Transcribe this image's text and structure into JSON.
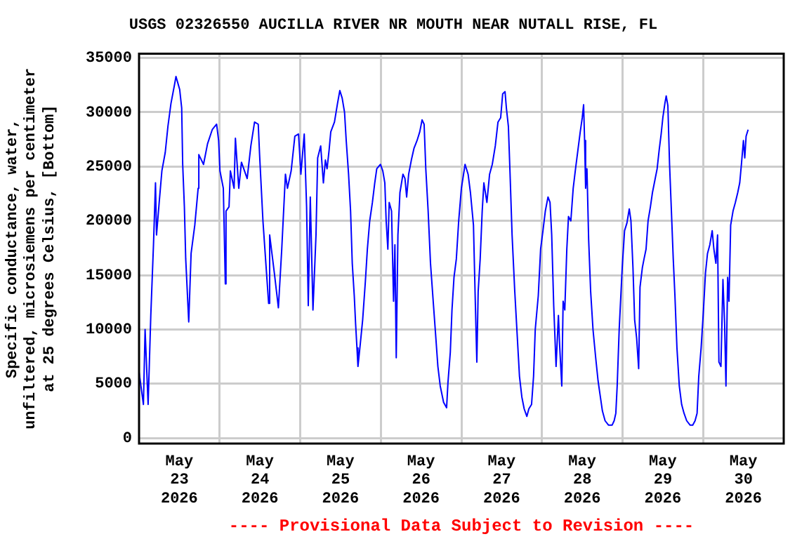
{
  "chart_data": {
    "type": "line",
    "title": "USGS 02326550 AUCILLA RIVER NR MOUTH NEAR NUTALL RISE, FL",
    "ylabel": "Specific conductance, water, unfiltered, microsiemens per centimeter at 25 degrees Celsius, [Bottom]",
    "annotations": [
      "---- Provisional Data Subject to Revision ----"
    ],
    "xlim": [
      "2026-05-23",
      "2026-05-31"
    ],
    "xticks": [
      {
        "value": "2026-05-23T12:00",
        "label": "May 23 2026"
      },
      {
        "value": "2026-05-24",
        "label": null
      },
      {
        "value": "2026-05-24T12:00",
        "label": "May 24 2026"
      },
      {
        "value": "2026-05-25",
        "label": null
      },
      {
        "value": "2026-05-25T12:00",
        "label": "May 25 2026"
      },
      {
        "value": "2026-05-26",
        "label": null
      },
      {
        "value": "2026-05-26T12:00",
        "label": "May 26 2026"
      },
      {
        "value": "2026-05-27",
        "label": null
      },
      {
        "value": "2026-05-27T12:00",
        "label": "May 27 2026"
      },
      {
        "value": "2026-05-28",
        "label": null
      },
      {
        "value": "2026-05-28T12:00",
        "label": "May 28 2026"
      },
      {
        "value": "2026-05-29",
        "label": null
      },
      {
        "value": "2026-05-29T12:00",
        "label": "May 29 2026"
      },
      {
        "value": "2026-05-30",
        "label": null
      },
      {
        "value": "2026-05-30T12:00",
        "label": "May 30 2026"
      }
    ],
    "ylim": [
      -500,
      35400
    ],
    "yticks": [
      0,
      5000,
      10000,
      15000,
      20000,
      25000,
      30000,
      35000
    ],
    "grid": true,
    "legend": false,
    "marker": "none",
    "line_style": "solid",
    "series": [
      {
        "color": "#0000ff",
        "x": [
          "2026-05-23T00:00",
          "2026-05-23T01:18",
          "2026-05-23T01:48",
          "2026-05-23T02:42",
          "2026-05-23T03:30",
          "2026-05-23T04:18",
          "2026-05-23T04:54",
          "2026-05-23T05:12",
          "2026-05-23T06:00",
          "2026-05-23T06:48",
          "2026-05-23T07:48",
          "2026-05-23T08:36",
          "2026-05-23T09:30",
          "2026-05-23T10:36",
          "2026-05-23T11:00",
          "2026-05-23T12:06",
          "2026-05-23T12:42",
          "2026-05-23T13:00",
          "2026-05-23T13:30",
          "2026-05-23T13:54",
          "2026-05-23T14:48",
          "2026-05-23T15:30",
          "2026-05-23T16:36",
          "2026-05-23T17:36",
          "2026-05-23T17:48",
          "2026-05-23T19:12",
          "2026-05-23T20:24",
          "2026-05-23T21:48",
          "2026-05-23T23:06",
          "2026-05-23T23:42",
          "2026-05-24T00:06",
          "2026-05-24T01:06",
          "2026-05-24T01:42",
          "2026-05-24T01:54",
          "2026-05-24T02:48",
          "2026-05-24T03:12",
          "2026-05-24T04:18",
          "2026-05-24T04:42",
          "2026-05-24T05:42",
          "2026-05-24T06:30",
          "2026-05-24T08:12",
          "2026-05-24T09:18",
          "2026-05-24T10:24",
          "2026-05-24T11:30",
          "2026-05-24T11:54",
          "2026-05-24T12:54",
          "2026-05-24T14:06",
          "2026-05-24T14:36",
          "2026-05-24T14:54",
          "2026-05-24T16:18",
          "2026-05-24T17:30",
          "2026-05-24T18:30",
          "2026-05-24T19:36",
          "2026-05-24T20:12",
          "2026-05-24T21:18",
          "2026-05-24T22:24",
          "2026-05-24T23:30",
          "2026-05-25T00:12",
          "2026-05-25T01:12",
          "2026-05-25T01:54",
          "2026-05-25T02:24",
          "2026-05-25T03:00",
          "2026-05-25T03:48",
          "2026-05-25T04:42",
          "2026-05-25T05:12",
          "2026-05-25T06:06",
          "2026-05-25T06:54",
          "2026-05-25T07:30",
          "2026-05-25T08:00",
          "2026-05-25T08:36",
          "2026-05-25T09:06",
          "2026-05-25T10:12",
          "2026-05-25T11:06",
          "2026-05-25T11:48",
          "2026-05-25T12:30",
          "2026-05-25T13:12",
          "2026-05-25T13:42",
          "2026-05-25T14:24",
          "2026-05-25T15:00",
          "2026-05-25T15:30",
          "2026-05-25T16:06",
          "2026-05-25T16:30",
          "2026-05-25T16:54",
          "2026-05-25T17:12",
          "2026-05-25T17:54",
          "2026-05-25T18:36",
          "2026-05-25T19:24",
          "2026-05-25T20:00",
          "2026-05-25T20:42",
          "2026-05-25T21:30",
          "2026-05-25T22:12",
          "2026-05-25T22:48",
          "2026-05-25T23:54",
          "2026-05-26T00:36",
          "2026-05-26T01:12",
          "2026-05-26T01:36",
          "2026-05-26T02:06",
          "2026-05-26T02:30",
          "2026-05-26T03:12",
          "2026-05-26T03:48",
          "2026-05-26T04:12",
          "2026-05-26T04:36",
          "2026-05-26T05:06",
          "2026-05-26T05:42",
          "2026-05-26T06:36",
          "2026-05-26T07:12",
          "2026-05-26T07:42",
          "2026-05-26T08:18",
          "2026-05-26T09:06",
          "2026-05-26T09:54",
          "2026-05-26T10:48",
          "2026-05-26T11:36",
          "2026-05-26T12:18",
          "2026-05-26T12:54",
          "2026-05-26T13:24",
          "2026-05-26T14:06",
          "2026-05-26T14:48",
          "2026-05-26T15:42",
          "2026-05-26T16:24",
          "2026-05-26T17:00",
          "2026-05-26T17:42",
          "2026-05-26T18:42",
          "2026-05-26T19:36",
          "2026-05-26T20:00",
          "2026-05-26T20:42",
          "2026-05-26T21:12",
          "2026-05-26T21:48",
          "2026-05-26T22:30",
          "2026-05-26T23:12",
          "2026-05-27T00:00",
          "2026-05-27T01:06",
          "2026-05-27T02:00",
          "2026-05-27T02:42",
          "2026-05-27T03:36",
          "2026-05-27T04:06",
          "2026-05-27T04:36",
          "2026-05-27T05:00",
          "2026-05-27T05:36",
          "2026-05-27T06:12",
          "2026-05-27T06:42",
          "2026-05-27T07:36",
          "2026-05-27T08:24",
          "2026-05-27T09:12",
          "2026-05-27T10:06",
          "2026-05-27T10:54",
          "2026-05-27T11:42",
          "2026-05-27T12:18",
          "2026-05-27T13:00",
          "2026-05-27T13:24",
          "2026-05-27T14:00",
          "2026-05-27T14:30",
          "2026-05-27T15:06",
          "2026-05-27T15:54",
          "2026-05-27T16:36",
          "2026-05-27T17:18",
          "2026-05-27T18:00",
          "2026-05-27T18:42",
          "2026-05-27T19:30",
          "2026-05-27T20:06",
          "2026-05-27T20:54",
          "2026-05-27T21:30",
          "2026-05-27T22:00",
          "2026-05-27T22:54",
          "2026-05-27T23:36",
          "2026-05-28T00:18",
          "2026-05-28T01:00",
          "2026-05-28T01:48",
          "2026-05-28T02:24",
          "2026-05-28T02:54",
          "2026-05-28T03:30",
          "2026-05-28T04:12",
          "2026-05-28T04:54",
          "2026-05-28T05:18",
          "2026-05-28T05:54",
          "2026-05-28T06:18",
          "2026-05-28T06:48",
          "2026-05-28T07:24",
          "2026-05-28T07:54",
          "2026-05-28T08:36",
          "2026-05-28T09:18",
          "2026-05-28T10:00",
          "2026-05-28T10:42",
          "2026-05-28T11:24",
          "2026-05-28T12:00",
          "2026-05-28T12:24",
          "2026-05-28T12:42",
          "2026-05-28T13:00",
          "2026-05-28T13:24",
          "2026-05-28T13:54",
          "2026-05-28T14:30",
          "2026-05-28T15:12",
          "2026-05-28T16:00",
          "2026-05-28T16:42",
          "2026-05-28T17:18",
          "2026-05-28T18:00",
          "2026-05-28T18:48",
          "2026-05-28T19:48",
          "2026-05-28T20:54",
          "2026-05-28T21:30",
          "2026-05-28T22:00",
          "2026-05-28T22:24",
          "2026-05-28T23:00",
          "2026-05-28T23:54",
          "2026-05-29T00:36",
          "2026-05-29T01:18",
          "2026-05-29T02:00",
          "2026-05-29T02:30",
          "2026-05-29T03:06",
          "2026-05-29T03:36",
          "2026-05-29T04:12",
          "2026-05-29T04:48",
          "2026-05-29T05:12",
          "2026-05-29T05:54",
          "2026-05-29T06:24",
          "2026-05-29T07:00",
          "2026-05-29T07:36",
          "2026-05-29T08:18",
          "2026-05-29T08:54",
          "2026-05-29T09:36",
          "2026-05-29T10:18",
          "2026-05-29T10:54",
          "2026-05-29T11:30",
          "2026-05-29T12:00",
          "2026-05-29T12:36",
          "2026-05-29T13:00",
          "2026-05-29T13:30",
          "2026-05-29T14:00",
          "2026-05-29T14:30",
          "2026-05-29T15:06",
          "2026-05-29T15:36",
          "2026-05-29T16:12",
          "2026-05-29T16:54",
          "2026-05-29T17:36",
          "2026-05-29T18:18",
          "2026-05-29T19:06",
          "2026-05-29T20:06",
          "2026-05-29T20:54",
          "2026-05-29T21:36",
          "2026-05-29T22:12",
          "2026-05-29T22:42",
          "2026-05-29T23:24",
          "2026-05-30T00:06",
          "2026-05-30T00:42",
          "2026-05-30T01:18",
          "2026-05-30T02:00",
          "2026-05-30T02:42",
          "2026-05-30T03:12",
          "2026-05-30T03:48",
          "2026-05-30T04:18",
          "2026-05-30T04:42",
          "2026-05-30T05:18",
          "2026-05-30T05:54",
          "2026-05-30T06:24",
          "2026-05-30T06:48",
          "2026-05-30T07:18",
          "2026-05-30T07:42",
          "2026-05-30T08:12",
          "2026-05-30T08:54",
          "2026-05-30T09:36",
          "2026-05-30T10:18",
          "2026-05-30T10:54",
          "2026-05-30T11:24",
          "2026-05-30T12:00",
          "2026-05-30T12:24",
          "2026-05-30T12:48",
          "2026-05-30T13:24"
        ],
        "values": [
          6100,
          3100,
          10000,
          3100,
          11300,
          17800,
          23500,
          18700,
          21700,
          24600,
          26300,
          28700,
          30800,
          32600,
          33300,
          32100,
          30400,
          25200,
          21300,
          16500,
          10700,
          17000,
          19600,
          23000,
          26100,
          25200,
          27100,
          28400,
          28900,
          27400,
          24600,
          23000,
          14200,
          20900,
          21300,
          24600,
          23000,
          27600,
          23000,
          25400,
          23900,
          26900,
          29100,
          28900,
          26100,
          20000,
          14600,
          12400,
          18700,
          15200,
          12000,
          17400,
          24300,
          23000,
          24600,
          27800,
          28000,
          24300,
          28000,
          21300,
          12200,
          22200,
          11800,
          18700,
          25800,
          26900,
          23500,
          25600,
          24800,
          26500,
          28200,
          29100,
          30800,
          32000,
          31300,
          30000,
          27400,
          24300,
          20900,
          16100,
          13100,
          10500,
          8300,
          6600,
          8700,
          10900,
          14400,
          17400,
          20000,
          21700,
          23500,
          24800,
          25200,
          24600,
          23500,
          20000,
          17400,
          21700,
          20900,
          12600,
          17800,
          7400,
          18700,
          22600,
          24300,
          23900,
          22200,
          24300,
          25600,
          26700,
          27400,
          28200,
          29300,
          28900,
          24800,
          20900,
          16100,
          12200,
          9200,
          6600,
          4800,
          3300,
          2800,
          5100,
          7900,
          11800,
          14800,
          16500,
          20000,
          23000,
          25200,
          24300,
          22600,
          19600,
          13100,
          7000,
          13500,
          16500,
          20900,
          23500,
          21700,
          24300,
          25200,
          26900,
          29100,
          29500,
          31700,
          31900,
          30400,
          28700,
          24300,
          18700,
          13500,
          9600,
          5700,
          3800,
          2700,
          2000,
          2700,
          3100,
          5700,
          10000,
          13100,
          17400,
          19100,
          20900,
          22200,
          21700,
          18700,
          12200,
          6600,
          11300,
          8300,
          4800,
          12600,
          11800,
          17400,
          20400,
          20000,
          23000,
          24800,
          26500,
          28200,
          29500,
          30700,
          27400,
          23000,
          24800,
          18300,
          13500,
          10000,
          7400,
          5300,
          4000,
          2500,
          1600,
          1200,
          1200,
          1600,
          2300,
          4800,
          10000,
          15700,
          19100,
          19800,
          21100,
          20000,
          15700,
          10900,
          9200,
          6400,
          13900,
          15700,
          16500,
          17400,
          20000,
          21300,
          22600,
          23700,
          24800,
          26500,
          28000,
          29500,
          30800,
          31500,
          30600,
          25200,
          21300,
          16500,
          13100,
          8300,
          4800,
          3100,
          2300,
          1600,
          1200,
          1200,
          1600,
          2300,
          5700,
          8300,
          11800,
          15200,
          17000,
          17800,
          19100,
          17400,
          16100,
          18700,
          7000,
          6600,
          14600,
          10500,
          4800,
          14800,
          12600,
          19600,
          20900,
          21700,
          22600,
          23500,
          25200,
          27400,
          25800,
          27800,
          28400
        ]
      }
    ]
  }
}
